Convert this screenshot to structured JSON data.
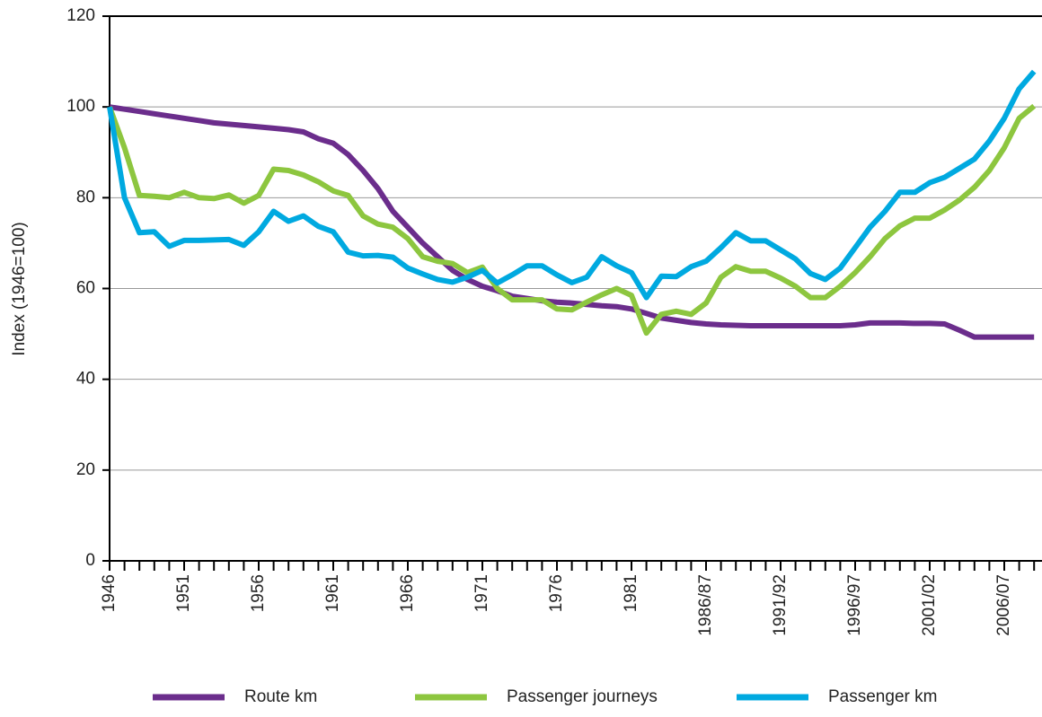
{
  "chart_data": {
    "type": "line",
    "y_label": "Index (1946=100)",
    "categories": [
      "1946",
      null,
      null,
      null,
      null,
      "1951",
      null,
      null,
      null,
      null,
      "1956",
      null,
      null,
      null,
      null,
      "1961",
      null,
      null,
      null,
      null,
      "1966",
      null,
      null,
      null,
      null,
      "1971",
      null,
      null,
      null,
      null,
      "1976",
      null,
      null,
      null,
      null,
      "1981",
      null,
      null,
      null,
      null,
      "1986/87",
      null,
      null,
      null,
      null,
      "1991/92",
      null,
      null,
      null,
      null,
      "1996/97",
      null,
      null,
      null,
      null,
      "2001/02",
      null,
      null,
      null,
      null,
      "2006/07",
      null,
      null
    ],
    "series": [
      {
        "name": "Route km",
        "color": "#6b2d8c",
        "values": [
          100,
          99.5,
          99,
          98.5,
          98,
          97.5,
          97,
          96.5,
          96.2,
          95.9,
          95.6,
          95.3,
          95,
          94.5,
          93,
          92,
          89.5,
          86,
          82,
          77,
          73.5,
          70,
          67,
          64,
          62,
          60.5,
          59.5,
          58.3,
          57.8,
          57.3,
          57,
          56.8,
          56.5,
          56.2,
          56,
          55.5,
          54.5,
          53.5,
          53,
          52.5,
          52.2,
          52,
          51.9,
          51.8,
          51.8,
          51.8,
          51.8,
          51.8,
          51.8,
          51.8,
          52,
          52.4,
          52.4,
          52.4,
          52.3,
          52.3,
          52.2,
          50.8,
          49.3,
          49.3,
          49.3,
          49.3,
          49.3
        ]
      },
      {
        "name": "Passenger journeys",
        "color": "#8dc63f",
        "values": [
          100,
          91,
          80.5,
          80.3,
          80,
          81.2,
          80,
          79.8,
          80.6,
          78.8,
          80.5,
          86.3,
          86,
          85,
          83.5,
          81.5,
          80.5,
          76,
          74.2,
          73.5,
          71,
          67,
          66,
          65.5,
          63.5,
          64.7,
          60,
          57.5,
          57.5,
          57.5,
          55.5,
          55.3,
          57,
          58.6,
          60,
          58.5,
          50.2,
          54.3,
          55,
          54.3,
          56.8,
          62.5,
          64.8,
          63.8,
          63.8,
          62.3,
          60.5,
          58,
          58,
          60.5,
          63.5,
          67,
          71,
          73.8,
          75.5,
          75.5,
          77.3,
          79.5,
          82.3,
          86,
          91,
          97.5,
          100.2
        ]
      },
      {
        "name": "Passenger km",
        "color": "#00a9e0",
        "values": [
          100,
          80,
          72.3,
          72.5,
          69.3,
          70.6,
          70.6,
          70.7,
          70.8,
          69.5,
          72.5,
          77,
          74.8,
          76,
          73.7,
          72.5,
          68,
          67.2,
          67.3,
          66.9,
          64.5,
          63.2,
          62,
          61.4,
          62.5,
          64,
          61.2,
          63,
          65,
          65,
          63,
          61.3,
          62.5,
          67,
          65,
          63.5,
          58,
          62.7,
          62.6,
          64.8,
          66,
          69,
          72.3,
          70.5,
          70.5,
          68.5,
          66.5,
          63.3,
          62,
          64.5,
          69,
          73.5,
          77,
          81.2,
          81.2,
          83.3,
          84.5,
          86.5,
          88.5,
          92.5,
          97.5,
          104,
          107.8
        ]
      }
    ],
    "ylim": [
      0,
      120
    ],
    "yticks": [
      0,
      20,
      40,
      60,
      80,
      100,
      120
    ],
    "grid": true,
    "legend": "bottom"
  }
}
